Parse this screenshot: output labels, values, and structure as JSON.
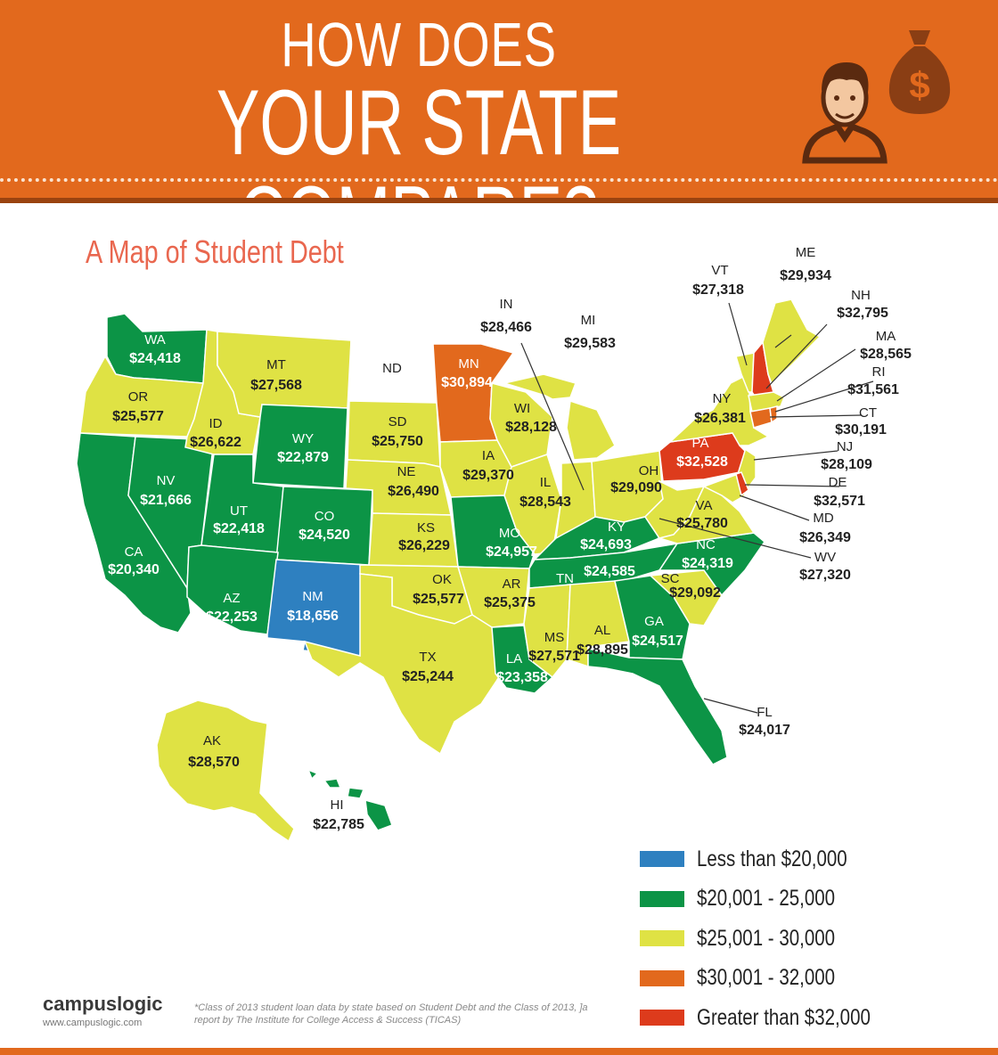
{
  "header": {
    "line1": "HOW DOES",
    "line2": "YOUR STATE COMPARE?"
  },
  "subtitle": "A Map of Student Debt",
  "colors": {
    "header": "#e2691d",
    "blue": "#2e80c0",
    "green": "#0c9446",
    "yellow": "#dfe244",
    "orange": "#e2691d",
    "red": "#dd3b1c",
    "subtitle": "#e9674f"
  },
  "icons": [
    "person-icon",
    "money-bag-icon"
  ],
  "states": {
    "WA": {
      "label": "WA",
      "value": "$24,418",
      "category": "green"
    },
    "OR": {
      "label": "OR",
      "value": "$25,577",
      "category": "yellow"
    },
    "CA": {
      "label": "CA",
      "value": "$20,340",
      "category": "green"
    },
    "NV": {
      "label": "NV",
      "value": "$21,666",
      "category": "green"
    },
    "ID": {
      "label": "ID",
      "value": "$26,622",
      "category": "yellow"
    },
    "MT": {
      "label": "MT",
      "value": "$27,568",
      "category": "yellow"
    },
    "WY": {
      "label": "WY",
      "value": "$22,879",
      "category": "green"
    },
    "UT": {
      "label": "UT",
      "value": "$22,418",
      "category": "green"
    },
    "CO": {
      "label": "CO",
      "value": "$24,520",
      "category": "green"
    },
    "AZ": {
      "label": "AZ",
      "value": "$22,253",
      "category": "green"
    },
    "NM": {
      "label": "NM",
      "value": "$18,656",
      "category": "blue"
    },
    "ND": {
      "label": "ND",
      "value": "",
      "category": "none"
    },
    "SD": {
      "label": "SD",
      "value": "$25,750",
      "category": "yellow"
    },
    "NE": {
      "label": "NE",
      "value": "$26,490",
      "category": "yellow"
    },
    "KS": {
      "label": "KS",
      "value": "$26,229",
      "category": "yellow"
    },
    "OK": {
      "label": "OK",
      "value": "$25,577",
      "category": "yellow"
    },
    "TX": {
      "label": "TX",
      "value": "$25,244",
      "category": "yellow"
    },
    "MN": {
      "label": "MN",
      "value": "$30,894",
      "category": "orange"
    },
    "IA": {
      "label": "IA",
      "value": "$29,370",
      "category": "yellow"
    },
    "MO": {
      "label": "MO",
      "value": "$24,957",
      "category": "green"
    },
    "AR": {
      "label": "AR",
      "value": "$25,375",
      "category": "yellow"
    },
    "LA": {
      "label": "LA",
      "value": "$23,358",
      "category": "green"
    },
    "WI": {
      "label": "WI",
      "value": "$28,128",
      "category": "yellow"
    },
    "IL": {
      "label": "IL",
      "value": "$28,543",
      "category": "yellow"
    },
    "IN": {
      "label": "IN",
      "value": "$28,466",
      "category": "yellow"
    },
    "MI": {
      "label": "MI",
      "value": "$29,583",
      "category": "yellow"
    },
    "OH": {
      "label": "OH",
      "value": "$29,090",
      "category": "yellow"
    },
    "KY": {
      "label": "KY",
      "value": "$24,693",
      "category": "green"
    },
    "TN": {
      "label": "TN",
      "value": "$24,585",
      "category": "green"
    },
    "MS": {
      "label": "MS",
      "value": "$27,571",
      "category": "yellow"
    },
    "AL": {
      "label": "AL",
      "value": "$28,895",
      "category": "yellow"
    },
    "GA": {
      "label": "GA",
      "value": "$24,517",
      "category": "green"
    },
    "FL": {
      "label": "FL",
      "value": "$24,017",
      "category": "green"
    },
    "SC": {
      "label": "SC",
      "value": "$29,092",
      "category": "yellow"
    },
    "NC": {
      "label": "NC",
      "value": "$24,319",
      "category": "green"
    },
    "VA": {
      "label": "VA",
      "value": "$25,780",
      "category": "yellow"
    },
    "WV": {
      "label": "WV",
      "value": "$27,320",
      "category": "yellow"
    },
    "PA": {
      "label": "PA",
      "value": "$32,528",
      "category": "red"
    },
    "NY": {
      "label": "NY",
      "value": "$26,381",
      "category": "yellow"
    },
    "VT": {
      "label": "VT",
      "value": "$27,318",
      "category": "yellow"
    },
    "ME": {
      "label": "ME",
      "value": "$29,934",
      "category": "yellow"
    },
    "NH": {
      "label": "NH",
      "value": "$32,795",
      "category": "red"
    },
    "MA": {
      "label": "MA",
      "value": "$28,565",
      "category": "yellow"
    },
    "RI": {
      "label": "RI",
      "value": "$31,561",
      "category": "orange"
    },
    "CT": {
      "label": "CT",
      "value": "$30,191",
      "category": "orange"
    },
    "NJ": {
      "label": "NJ",
      "value": "$28,109",
      "category": "yellow"
    },
    "DE": {
      "label": "DE",
      "value": "$32,571",
      "category": "red"
    },
    "MD": {
      "label": "MD",
      "value": "$26,349",
      "category": "yellow"
    },
    "AK": {
      "label": "AK",
      "value": "$28,570",
      "category": "yellow"
    },
    "HI": {
      "label": "HI",
      "value": "$22,785",
      "category": "green"
    }
  },
  "legend": [
    {
      "label": "Less than $20,000",
      "color": "#2e80c0"
    },
    {
      "label": "$20,001 - 25,000",
      "color": "#0c9446"
    },
    {
      "label": "$25,001 - 30,000",
      "color": "#dfe244"
    },
    {
      "label": "$30,001 - 32,000",
      "color": "#e2691d"
    },
    {
      "label": "Greater than $32,000",
      "color": "#dd3b1c"
    }
  ],
  "brand": {
    "name": "campuslogic",
    "url": "www.campuslogic.com"
  },
  "footnote": "*Class of 2013 student loan data by state based on Student Debt and the Class of 2013, ]a report by The Institute for College Access & Success (TICAS)"
}
